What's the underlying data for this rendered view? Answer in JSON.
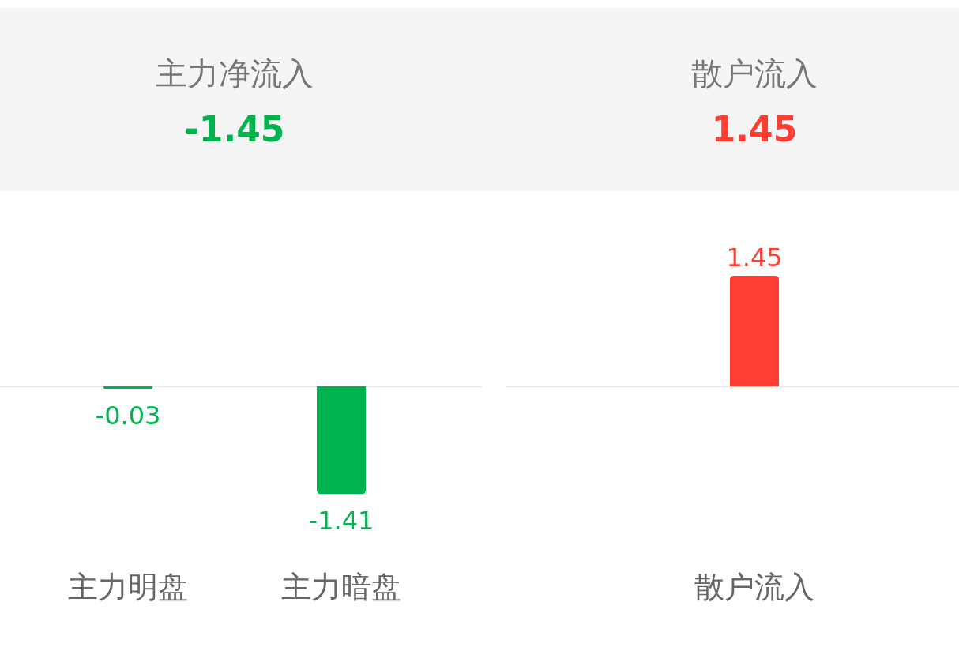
{
  "chart_data": [
    {
      "type": "bar",
      "title": "主力净流入",
      "subtitle": "-1.45",
      "categories": [
        "主力明盘",
        "主力暗盘"
      ],
      "values": [
        -0.03,
        -1.41
      ],
      "color": "#00b34f",
      "data_labels": true
    },
    {
      "type": "bar",
      "title": "散户流入",
      "subtitle": "1.45",
      "categories": [
        "散户流入"
      ],
      "values": [
        1.45
      ],
      "color": "#ff3d33",
      "data_labels": true
    }
  ]
}
